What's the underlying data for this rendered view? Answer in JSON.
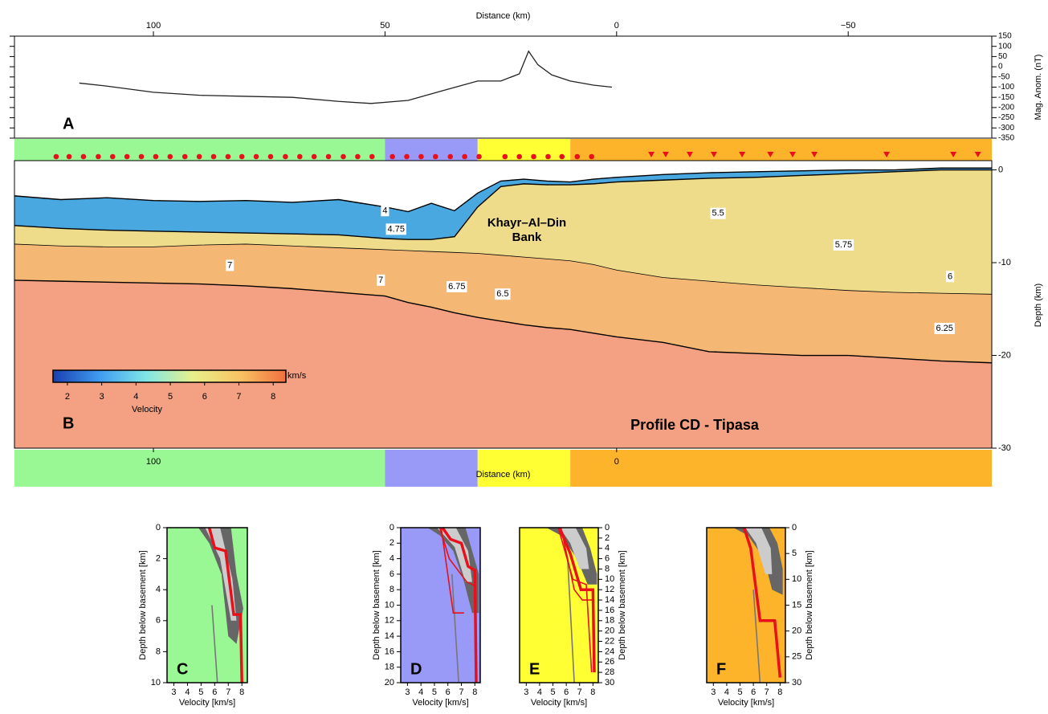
{
  "chart_data": [
    {
      "type": "line",
      "panel": "A",
      "xlabel": "Distance (km)",
      "ylabel": "Mag. Anom. (nT)",
      "xlim": [
        130,
        -81
      ],
      "xticks": [
        100,
        50,
        0,
        {
          "value": -50,
          "label": "−50"
        }
      ],
      "ylim": [
        -350,
        150
      ],
      "yticks": [
        -350,
        -300,
        -250,
        -200,
        -150,
        -100,
        -50,
        0,
        50,
        100,
        150
      ],
      "series": [
        {
          "color": "#222222",
          "x": [
            116,
            110,
            100,
            90,
            80,
            70,
            60,
            53,
            45,
            38,
            30,
            25,
            21,
            19,
            17,
            14,
            10,
            5,
            1
          ],
          "values": [
            -80,
            -95,
            -125,
            -140,
            -145,
            -150,
            -170,
            -180,
            -165,
            -120,
            -70,
            -70,
            -35,
            76,
            10,
            -40,
            -70,
            -90,
            -100
          ]
        }
      ]
    },
    {
      "type": "section",
      "panel": "B",
      "title": "Profile CD - Tipasa",
      "annotation": [
        "Khayr–Al–Din",
        "Bank"
      ],
      "xlabel": "Distance (km)",
      "xlim": [
        130,
        -81
      ],
      "xticks": [
        100,
        0
      ],
      "ylabel": "Depth (km)",
      "ylim": [
        -30,
        1
      ],
      "yticks": [
        -30,
        -20,
        -10,
        0
      ],
      "zones": [
        {
          "xlim": [
            130,
            50
          ],
          "color": "#99f794"
        },
        {
          "xlim": [
            50,
            30
          ],
          "color": "#9999f7"
        },
        {
          "xlim": [
            30,
            10
          ],
          "color": "#ffff33"
        },
        {
          "xlim": [
            10,
            -81
          ],
          "color": "#fdb42b"
        }
      ],
      "stations": [
        121,
        118.2,
        115.1,
        111.9,
        108.8,
        105.7,
        102.6,
        99.5,
        96.4,
        93.2,
        90.1,
        87,
        83.9,
        80.9,
        77.8,
        74.7,
        71.5,
        68.4,
        65.3,
        62.2,
        59,
        55.9,
        52.8,
        48.4,
        45.3,
        42.2,
        39.1,
        35.9,
        32.8,
        29.7,
        24.1,
        21,
        17.9,
        14.8,
        11.8,
        8.5,
        5.4
      ],
      "obs": [
        -7.5,
        -10.6,
        -15.8,
        -21,
        -27.1,
        -33.2,
        -38,
        -42.7,
        -58.3,
        -72.7,
        -78
      ],
      "x": [
        130,
        120,
        110,
        100,
        90,
        80,
        70,
        60,
        55,
        50,
        45,
        40,
        35,
        30,
        25,
        20,
        15,
        10,
        5,
        0,
        -10,
        -20,
        -30,
        -40,
        -50,
        -60,
        -70,
        -81
      ],
      "series": [
        {
          "color": "#4aa8e0",
          "values": [
            -2.8,
            -3.2,
            -3.0,
            -3.3,
            -3.4,
            -3.3,
            -3.5,
            -3.2,
            -3.6,
            -4.0,
            -4.5,
            -3.6,
            -4.4,
            -2.5,
            -1.2,
            -1.0,
            -1.2,
            -1.3,
            -1.0,
            -0.8,
            -0.5,
            -0.3,
            -0.2,
            -0.1,
            0,
            0,
            0.2,
            0.2
          ]
        },
        {
          "color": "#eedc8a",
          "values": [
            -6.0,
            -6.3,
            -6.5,
            -6.6,
            -6.7,
            -6.8,
            -6.9,
            -7.0,
            -7.2,
            -7.4,
            -7.5,
            -7.5,
            -7.2,
            -4.0,
            -1.8,
            -1.5,
            -1.6,
            -1.6,
            -1.5,
            -1.3,
            -1.1,
            -0.9,
            -0.8,
            -0.6,
            -0.4,
            -0.2,
            0,
            0
          ]
        },
        {
          "color": "#f5b774",
          "values": [
            -8.0,
            -8.2,
            -8.3,
            -8.3,
            -8.1,
            -8.0,
            -8.2,
            -8.4,
            -8.5,
            -8.6,
            -8.7,
            -8.8,
            -8.9,
            -9.0,
            -9.2,
            -9.4,
            -9.6,
            -9.8,
            -10.2,
            -10.8,
            -11.6,
            -12.0,
            -12.4,
            -12.7,
            -13.0,
            -13.2,
            -13.3,
            -13.4
          ]
        },
        {
          "color": "#f4a083",
          "values": [
            -11.9,
            -12.0,
            -12.1,
            -12.2,
            -12.3,
            -12.5,
            -12.8,
            -13.2,
            -13.4,
            -13.6,
            -14.3,
            -14.8,
            -15.4,
            -15.9,
            -16.3,
            -16.7,
            -17.0,
            -17.2,
            -17.6,
            -18.0,
            -18.6,
            -19.6,
            -19.8,
            -20.0,
            -20.0,
            -20.3,
            -20.6,
            -20.8
          ]
        }
      ],
      "contour_labels": [
        {
          "value": 4,
          "x": 50,
          "y": -4.4
        },
        {
          "value": 4.75,
          "x": 47.6,
          "y": -6.4
        },
        {
          "value": 5.5,
          "x": -21.9,
          "y": -4.7
        },
        {
          "value": 5.75,
          "x": -49,
          "y": -8.1
        },
        {
          "value": 6,
          "x": -72,
          "y": -11.5
        },
        {
          "value": 6.25,
          "x": -70.8,
          "y": -17.1
        },
        {
          "value": 7,
          "x": 83.5,
          "y": -10.3
        },
        {
          "value": 7,
          "x": 50.9,
          "y": -11.9
        },
        {
          "value": 6.75,
          "x": 34.5,
          "y": -12.6
        },
        {
          "value": 6.5,
          "x": 24.6,
          "y": -13.4
        }
      ],
      "colorbar": {
        "xlim": [
          1.58,
          8.37
        ],
        "xticks": [
          2,
          3,
          4,
          5,
          6,
          7,
          8
        ],
        "label": "Velocity",
        "unit": "km/s",
        "colors": [
          "#1a3fb0",
          "#3f9cf0",
          "#7fe6e6",
          "#e6f08a",
          "#f8c463",
          "#f07040"
        ]
      }
    },
    {
      "type": "profile",
      "panel": "C",
      "xlabel": "Velocity [km/s]",
      "ylabel": "Depth below basement [km]",
      "xlim": [
        2.5,
        8.4
      ],
      "xticks": [
        3,
        4,
        5,
        6,
        7,
        8
      ],
      "ylim": [
        10,
        0
      ],
      "yticks": [
        0,
        2,
        4,
        6,
        8,
        10
      ],
      "yaxis": "left",
      "background": "#99f794",
      "series": [
        {
          "style": "area",
          "color": "#666666",
          "x": [
            4.8,
            7.2,
            7.6,
            8.1,
            7.6,
            7.0,
            6.5,
            5.6
          ],
          "values": [
            0,
            0,
            3,
            5.2,
            7.5,
            7,
            3,
            1
          ]
        },
        {
          "style": "area",
          "color": "#cccccc",
          "x": [
            5.3,
            6.4,
            7.3,
            7.6,
            7.2,
            6.4
          ],
          "values": [
            0,
            0,
            3.3,
            6,
            6,
            2
          ]
        },
        {
          "style": "thin",
          "color": "#777777",
          "x": [
            5.8,
            6.2
          ],
          "values": [
            5,
            10
          ]
        },
        {
          "style": "thick",
          "color": "#e8101a",
          "x": [
            5.6,
            6.0,
            6.8,
            7.4,
            7.9,
            8.0
          ],
          "values": [
            0,
            1.3,
            1.5,
            5.6,
            5.6,
            10
          ]
        }
      ]
    },
    {
      "type": "profile",
      "panel": "D",
      "xlabel": "Velocity [km/s]",
      "ylabel": "Depth below basement [km]",
      "xlim": [
        2.5,
        8.4
      ],
      "xticks": [
        3,
        4,
        5,
        6,
        7,
        8
      ],
      "ylim": [
        20,
        0
      ],
      "yticks": [
        0,
        2,
        4,
        6,
        8,
        10,
        12,
        14,
        16,
        18,
        20
      ],
      "yaxis": "left",
      "background": "#9999f7",
      "series": [
        {
          "style": "area",
          "color": "#666666",
          "x": [
            4.5,
            7.3,
            7.8,
            8.3,
            8.3,
            7.8,
            7.2,
            6.4,
            5.4
          ],
          "values": [
            0,
            0,
            3,
            6,
            11,
            11,
            7,
            3,
            1
          ]
        },
        {
          "style": "area",
          "color": "#cccccc",
          "x": [
            5.2,
            6.6,
            7.5,
            7.8,
            7.3,
            6.5
          ],
          "values": [
            0,
            0,
            3,
            7,
            7,
            2.5
          ]
        },
        {
          "style": "thin",
          "color": "#777777",
          "x": [
            6.3,
            6.8
          ],
          "values": [
            6,
            20
          ]
        },
        {
          "style": "thin",
          "color": "#e8101a",
          "x": [
            5.4,
            6.1,
            7.4,
            8.0
          ],
          "values": [
            0,
            4,
            7,
            7.5
          ]
        },
        {
          "style": "thin",
          "color": "#e8101a",
          "x": [
            5.5,
            6.4,
            7.2
          ],
          "values": [
            0,
            11,
            11
          ]
        },
        {
          "style": "thick",
          "color": "#e8101a",
          "x": [
            5.6,
            6.2,
            7.0,
            7.5,
            8.0,
            8.1
          ],
          "values": [
            0,
            1.5,
            2,
            5,
            5.5,
            20
          ]
        }
      ]
    },
    {
      "type": "profile",
      "panel": "E",
      "xlabel": "Velocity [km/s]",
      "ylabel": "Depth below basement [km]",
      "xlim": [
        2.5,
        8.4
      ],
      "xticks": [
        3,
        4,
        5,
        6,
        7,
        8
      ],
      "ylim": [
        30,
        0
      ],
      "yticks": [
        0,
        2,
        4,
        6,
        8,
        10,
        12,
        14,
        16,
        18,
        20,
        22,
        24,
        26,
        28,
        30
      ],
      "yaxis": "right",
      "background": "#ffff33",
      "series": [
        {
          "style": "area",
          "color": "#666666",
          "x": [
            4.5,
            7.2,
            7.8,
            8.3,
            8.3,
            7.6,
            6.8,
            5.6
          ],
          "values": [
            0,
            0,
            4,
            9,
            11,
            11,
            6,
            1.5
          ]
        },
        {
          "style": "area",
          "color": "#cccccc",
          "x": [
            5.5,
            6.7,
            7.5,
            7.7,
            7.0,
            6.3
          ],
          "values": [
            0,
            0,
            4,
            8,
            8,
            3
          ]
        },
        {
          "style": "thin",
          "color": "#777777",
          "x": [
            6.1,
            6.6
          ],
          "values": [
            6,
            30
          ]
        },
        {
          "style": "thin",
          "color": "#e8101a",
          "x": [
            5.6,
            6.6,
            7.2,
            8.1
          ],
          "values": [
            0,
            12,
            14,
            14
          ]
        },
        {
          "style": "thin",
          "color": "#e8101a",
          "x": [
            5.4,
            6.5,
            7.5,
            7.9
          ],
          "values": [
            0,
            10,
            11,
            28
          ]
        },
        {
          "style": "thick",
          "color": "#e8101a",
          "x": [
            5.5,
            6.3,
            7.1,
            8.0,
            8.1
          ],
          "values": [
            0,
            5,
            12,
            12,
            28
          ]
        }
      ]
    },
    {
      "type": "profile",
      "panel": "F",
      "xlabel": "Velocity [km/s]",
      "ylabel": "Depth below basement [km]",
      "xlim": [
        2.5,
        8.4
      ],
      "xticks": [
        3,
        4,
        5,
        6,
        7,
        8
      ],
      "ylim": [
        30,
        0
      ],
      "yticks": [
        0,
        5,
        10,
        15,
        20,
        25,
        30
      ],
      "yaxis": "right",
      "background": "#fdb42b",
      "series": [
        {
          "style": "area",
          "color": "#666666",
          "x": [
            4.5,
            7.2,
            7.8,
            8.2,
            8.2,
            7.4,
            6.8,
            5.6
          ],
          "values": [
            0,
            0,
            3,
            8,
            13,
            12,
            6,
            1.5
          ]
        },
        {
          "style": "area",
          "color": "#cccccc",
          "x": [
            5.4,
            6.6,
            7.3,
            7.4,
            6.9,
            6.2
          ],
          "values": [
            0,
            0,
            4,
            9,
            9,
            3
          ]
        },
        {
          "style": "thin",
          "color": "#777777",
          "x": [
            6.0,
            6.5
          ],
          "values": [
            12,
            30
          ]
        },
        {
          "style": "thick",
          "color": "#e8101a",
          "x": [
            5.3,
            5.8,
            6.5,
            7.6,
            8.0
          ],
          "values": [
            0,
            4,
            18,
            18,
            29
          ]
        }
      ]
    }
  ]
}
